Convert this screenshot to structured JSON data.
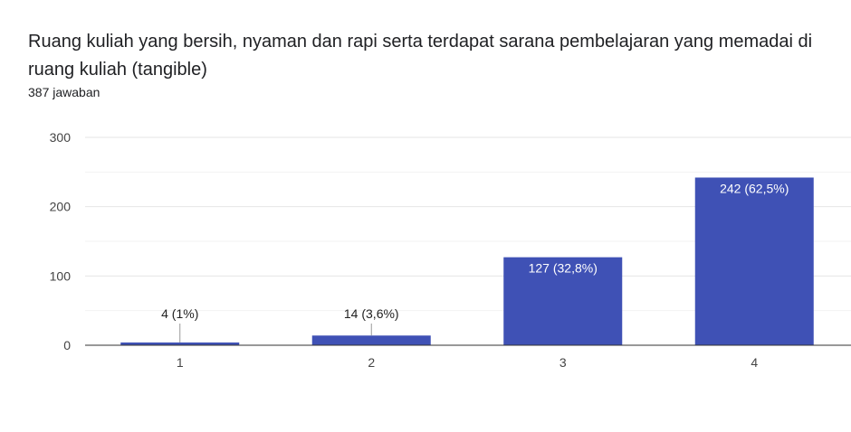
{
  "header": {
    "question": "Ruang kuliah yang bersih, nyaman dan rapi serta terdapat sarana pembelajaran yang memadai di ruang kuliah (tangible)",
    "responses": "387 jawaban"
  },
  "colors": {
    "bar": "#3f51b5",
    "gridline": "#e6e6e6",
    "minor_gridline": "#f3f3f3",
    "axis": "#333333"
  },
  "chart_data": {
    "type": "bar",
    "categories": [
      "1",
      "2",
      "3",
      "4"
    ],
    "values": [
      4,
      14,
      127,
      242
    ],
    "data_labels": [
      "4 (1%)",
      "14 (3,6%)",
      "127 (32,8%)",
      "242 (62,5%)"
    ],
    "y_ticks": [
      "0",
      "100",
      "200",
      "300"
    ],
    "ylim": [
      0,
      300
    ],
    "grid": true,
    "legend": "none",
    "title": "",
    "xlabel": "",
    "ylabel": ""
  }
}
